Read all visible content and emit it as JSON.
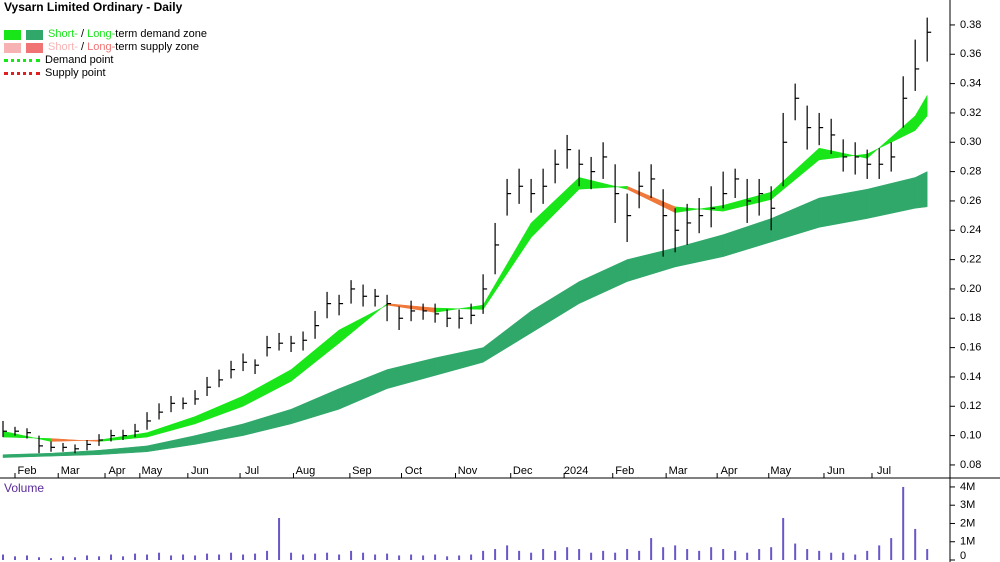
{
  "chart_data": {
    "type": "ohlc",
    "title": "Vysarn Limited Ordinary - Daily",
    "legend": [
      {
        "swatches": [
          "#19e619",
          "#2fa86a"
        ],
        "parts": [
          {
            "text": "Short-",
            "color": "#19e619"
          },
          {
            "text": " / ",
            "color": "#000000"
          },
          {
            "text": "Long-",
            "color": "#19e619"
          },
          {
            "text": "term demand zone",
            "color": "#000000"
          }
        ]
      },
      {
        "swatches": [
          "#f7b3b3",
          "#f07474"
        ],
        "parts": [
          {
            "text": "Short-",
            "color": "#f7b3b3"
          },
          {
            "text": " / ",
            "color": "#000000"
          },
          {
            "text": "Long-",
            "color": "#f07474"
          },
          {
            "text": "term supply zone",
            "color": "#000000"
          }
        ]
      },
      {
        "line": "#19e619",
        "parts": [
          {
            "text": "Demand point",
            "color": "#000000"
          }
        ]
      },
      {
        "line": "#e02020",
        "parts": [
          {
            "text": "Supply point",
            "color": "#000000"
          }
        ]
      }
    ],
    "xlim": [
      -0.25,
      78.9
    ],
    "xticks": [
      {
        "value": 2,
        "label": "Feb"
      },
      {
        "value": 5.6,
        "label": "Mar"
      },
      {
        "value": 9.5,
        "label": "Apr"
      },
      {
        "value": 12.4,
        "label": "May"
      },
      {
        "value": 16.4,
        "label": "Jun"
      },
      {
        "value": 20.75,
        "label": "Jul"
      },
      {
        "value": 25.2,
        "label": "Aug"
      },
      {
        "value": 29.9,
        "label": "Sep"
      },
      {
        "value": 34.2,
        "label": "Oct"
      },
      {
        "value": 38.7,
        "label": "Nov"
      },
      {
        "value": 43.3,
        "label": "Dec"
      },
      {
        "value": 47.75,
        "label": "2024"
      },
      {
        "value": 51.8,
        "label": "Feb"
      },
      {
        "value": 56.25,
        "label": "Mar"
      },
      {
        "value": 60.5,
        "label": "Apr"
      },
      {
        "value": 64.8,
        "label": "May"
      },
      {
        "value": 69.4,
        "label": "Jun"
      },
      {
        "value": 73.4,
        "label": "Jul"
      }
    ],
    "ylim": [
      0.0711,
      0.397
    ],
    "yticks": [
      0.08,
      {
        "value": 0.1,
        "label": "0.10"
      },
      0.12,
      0.14,
      0.16,
      0.18,
      {
        "value": 0.2,
        "label": "0.20"
      },
      0.22,
      0.24,
      0.26,
      0.28,
      {
        "value": 0.3,
        "label": "0.30"
      },
      0.32,
      0.34,
      0.36,
      0.38
    ],
    "high": [
      0.11,
      0.106,
      0.105,
      0.1,
      0.096,
      0.095,
      0.094,
      0.097,
      0.101,
      0.104,
      0.104,
      0.108,
      0.116,
      0.122,
      0.127,
      0.126,
      0.131,
      0.14,
      0.145,
      0.151,
      0.156,
      0.152,
      0.168,
      0.17,
      0.168,
      0.171,
      0.185,
      0.198,
      0.196,
      0.206,
      0.203,
      0.2,
      0.196,
      0.188,
      0.192,
      0.19,
      0.19,
      0.186,
      0.186,
      0.19,
      0.21,
      0.245,
      0.275,
      0.282,
      0.275,
      0.282,
      0.295,
      0.305,
      0.295,
      0.29,
      0.3,
      0.285,
      0.265,
      0.28,
      0.285,
      0.268,
      0.255,
      0.258,
      0.262,
      0.27,
      0.28,
      0.282,
      0.275,
      0.275,
      0.27,
      0.32,
      0.34,
      0.325,
      0.32,
      0.316,
      0.302,
      0.3,
      0.295,
      0.296,
      0.3,
      0.345,
      0.37,
      0.385
    ],
    "low": [
      0.099,
      0.1,
      0.098,
      0.088,
      0.089,
      0.089,
      0.088,
      0.09,
      0.093,
      0.096,
      0.097,
      0.099,
      0.104,
      0.111,
      0.116,
      0.118,
      0.121,
      0.127,
      0.133,
      0.139,
      0.144,
      0.142,
      0.154,
      0.158,
      0.157,
      0.158,
      0.166,
      0.18,
      0.182,
      0.19,
      0.188,
      0.188,
      0.178,
      0.172,
      0.178,
      0.179,
      0.177,
      0.174,
      0.173,
      0.176,
      0.183,
      0.21,
      0.25,
      0.258,
      0.252,
      0.258,
      0.272,
      0.282,
      0.27,
      0.268,
      0.275,
      0.245,
      0.232,
      0.255,
      0.262,
      0.222,
      0.225,
      0.23,
      0.238,
      0.242,
      0.255,
      0.262,
      0.245,
      0.25,
      0.24,
      0.27,
      0.315,
      0.295,
      0.298,
      0.292,
      0.28,
      0.278,
      0.275,
      0.275,
      0.28,
      0.31,
      0.335,
      0.355
    ],
    "close": [
      0.103,
      0.103,
      0.102,
      0.093,
      0.092,
      0.092,
      0.091,
      0.094,
      0.097,
      0.1,
      0.1,
      0.103,
      0.11,
      0.116,
      0.122,
      0.122,
      0.125,
      0.133,
      0.138,
      0.145,
      0.15,
      0.148,
      0.16,
      0.163,
      0.163,
      0.165,
      0.175,
      0.19,
      0.19,
      0.2,
      0.195,
      0.195,
      0.19,
      0.18,
      0.185,
      0.185,
      0.183,
      0.18,
      0.18,
      0.182,
      0.2,
      0.23,
      0.265,
      0.27,
      0.265,
      0.27,
      0.285,
      0.295,
      0.285,
      0.28,
      0.29,
      0.265,
      0.25,
      0.27,
      0.275,
      0.25,
      0.24,
      0.245,
      0.25,
      0.255,
      0.265,
      0.275,
      0.26,
      0.265,
      0.255,
      0.3,
      0.33,
      0.31,
      0.31,
      0.305,
      0.29,
      0.29,
      0.285,
      0.285,
      0.29,
      0.33,
      0.35,
      0.375
    ],
    "short_zone": {
      "x": [
        0,
        4,
        8,
        12,
        16,
        20,
        24,
        28,
        32,
        36,
        40,
        44,
        48,
        52,
        56,
        60,
        64,
        68,
        72,
        76,
        77
      ],
      "fast": [
        0.103,
        0.096,
        0.097,
        0.102,
        0.113,
        0.127,
        0.145,
        0.172,
        0.189,
        0.184,
        0.189,
        0.245,
        0.276,
        0.268,
        0.252,
        0.257,
        0.266,
        0.296,
        0.289,
        0.318,
        0.332
      ],
      "slow": [
        0.099,
        0.098,
        0.096,
        0.099,
        0.108,
        0.12,
        0.137,
        0.163,
        0.19,
        0.187,
        0.186,
        0.235,
        0.268,
        0.27,
        0.256,
        0.253,
        0.261,
        0.288,
        0.292,
        0.308,
        0.318
      ],
      "demand_color": "#19e619",
      "supply_color": "#f0783a"
    },
    "long_zone": {
      "x": [
        0,
        4,
        8,
        12,
        16,
        20,
        24,
        28,
        32,
        36,
        40,
        44,
        48,
        52,
        56,
        60,
        64,
        68,
        72,
        76,
        77
      ],
      "upper": [
        0.087,
        0.088,
        0.09,
        0.093,
        0.1,
        0.108,
        0.118,
        0.132,
        0.145,
        0.153,
        0.16,
        0.185,
        0.205,
        0.22,
        0.228,
        0.237,
        0.248,
        0.262,
        0.268,
        0.276,
        0.28
      ],
      "lower": [
        0.085,
        0.086,
        0.087,
        0.089,
        0.094,
        0.1,
        0.108,
        0.118,
        0.132,
        0.141,
        0.15,
        0.17,
        0.19,
        0.205,
        0.215,
        0.222,
        0.232,
        0.242,
        0.248,
        0.255,
        0.256
      ],
      "color": "#2fa86a"
    },
    "volume": {
      "label": "Volume",
      "color": "#6b56c8",
      "ylim": [
        0,
        4380000
      ],
      "yticks": [
        0,
        {
          "value": 1000000,
          "label": "1M"
        },
        {
          "value": 2000000,
          "label": "2M"
        },
        {
          "value": 3000000,
          "label": "3M"
        },
        {
          "value": 4000000,
          "label": "4M"
        }
      ],
      "values": [
        300000,
        200000,
        250000,
        150000,
        100000,
        200000,
        150000,
        250000,
        200000,
        300000,
        200000,
        350000,
        300000,
        400000,
        250000,
        300000,
        250000,
        350000,
        300000,
        400000,
        300000,
        350000,
        500000,
        2300000,
        400000,
        300000,
        350000,
        400000,
        300000,
        500000,
        400000,
        300000,
        350000,
        250000,
        300000,
        250000,
        300000,
        200000,
        250000,
        300000,
        500000,
        600000,
        800000,
        500000,
        400000,
        600000,
        500000,
        700000,
        600000,
        400000,
        500000,
        400000,
        600000,
        500000,
        1200000,
        700000,
        800000,
        600000,
        500000,
        700000,
        600000,
        500000,
        400000,
        600000,
        700000,
        2300000,
        900000,
        600000,
        500000,
        400000,
        400000,
        300000,
        500000,
        800000,
        1200000,
        4000000,
        1700000,
        600000
      ]
    }
  }
}
